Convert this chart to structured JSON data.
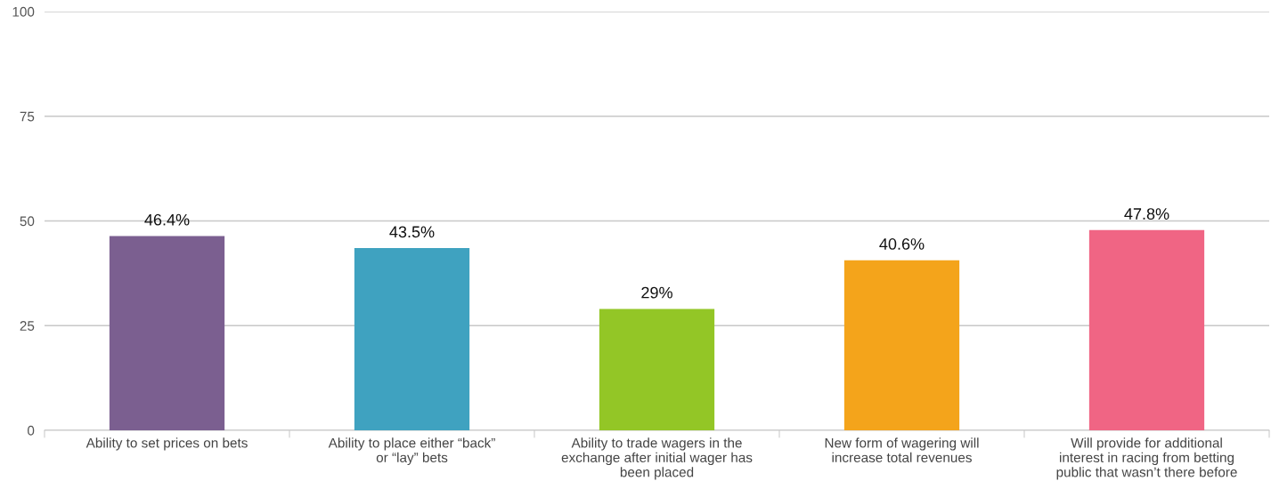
{
  "chart_data": {
    "type": "bar",
    "categories": [
      "Ability to set prices on bets",
      "Ability to place either “back” or “lay” bets",
      "Ability to trade wagers in the exchange after initial wager has been placed",
      "New form of wagering will increase total revenues",
      "Will provide for additional interest in racing from betting public that wasn’t there before"
    ],
    "values": [
      46.4,
      43.5,
      29,
      40.6,
      47.8
    ],
    "colors": [
      "#7b5f90",
      "#3fa2c0",
      "#93c626",
      "#f4a41b",
      "#f06584"
    ],
    "value_labels": [
      "46.4%",
      "43.5%",
      "29%",
      "40.6%",
      "47.8%"
    ],
    "ylim": [
      0,
      100
    ],
    "yticks": [
      0,
      25,
      50,
      75,
      100
    ],
    "grid": "y",
    "legend": false
  }
}
